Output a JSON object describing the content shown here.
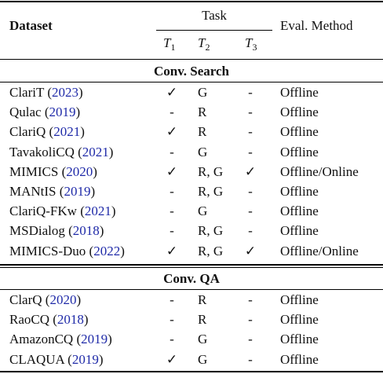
{
  "header": {
    "dataset": "Dataset",
    "task": "Task",
    "eval": "Eval. Method",
    "t1": "T",
    "t1_sub": "1",
    "t2": "T",
    "t2_sub": "2",
    "t3": "T",
    "t3_sub": "3"
  },
  "sections": [
    {
      "title": "Conv. Search",
      "rows": [
        {
          "name": "ClariT",
          "year": "2023",
          "t1": "✓",
          "t2": "G",
          "t3": "-",
          "eval": "Offline"
        },
        {
          "name": "Qulac",
          "year": "2019",
          "t1": "-",
          "t2": "R",
          "t3": "-",
          "eval": "Offline"
        },
        {
          "name": "ClariQ",
          "year": "2021",
          "t1": "✓",
          "t2": "R",
          "t3": "-",
          "eval": "Offline"
        },
        {
          "name": "TavakoliCQ",
          "year": "2021",
          "t1": "-",
          "t2": "G",
          "t3": "-",
          "eval": "Offline"
        },
        {
          "name": "MIMICS",
          "year": "2020",
          "t1": "✓",
          "t2": "R, G",
          "t3": "✓",
          "eval": "Offline/Online"
        },
        {
          "name": "MANtIS",
          "year": "2019",
          "t1": "-",
          "t2": "R, G",
          "t3": "-",
          "eval": "Offline"
        },
        {
          "name": "ClariQ-FKw",
          "year": "2021",
          "t1": "-",
          "t2": "G",
          "t3": "-",
          "eval": "Offline"
        },
        {
          "name": "MSDialog",
          "year": "2018",
          "t1": "-",
          "t2": "R, G",
          "t3": "-",
          "eval": "Offline"
        },
        {
          "name": "MIMICS-Duo",
          "year": "2022",
          "t1": "✓",
          "t2": "R, G",
          "t3": "✓",
          "eval": "Offline/Online"
        }
      ]
    },
    {
      "title": "Conv. QA",
      "rows": [
        {
          "name": "ClarQ",
          "year": "2020",
          "t1": "-",
          "t2": "R",
          "t3": "-",
          "eval": "Offline"
        },
        {
          "name": "RaoCQ",
          "year": "2018",
          "t1": "-",
          "t2": "R",
          "t3": "-",
          "eval": "Offline"
        },
        {
          "name": "AmazonCQ",
          "year": "2019",
          "t1": "-",
          "t2": "G",
          "t3": "-",
          "eval": "Offline"
        },
        {
          "name": "CLAQUA",
          "year": "2019",
          "t1": "✓",
          "t2": "G",
          "t3": "-",
          "eval": "Offline"
        }
      ]
    }
  ]
}
